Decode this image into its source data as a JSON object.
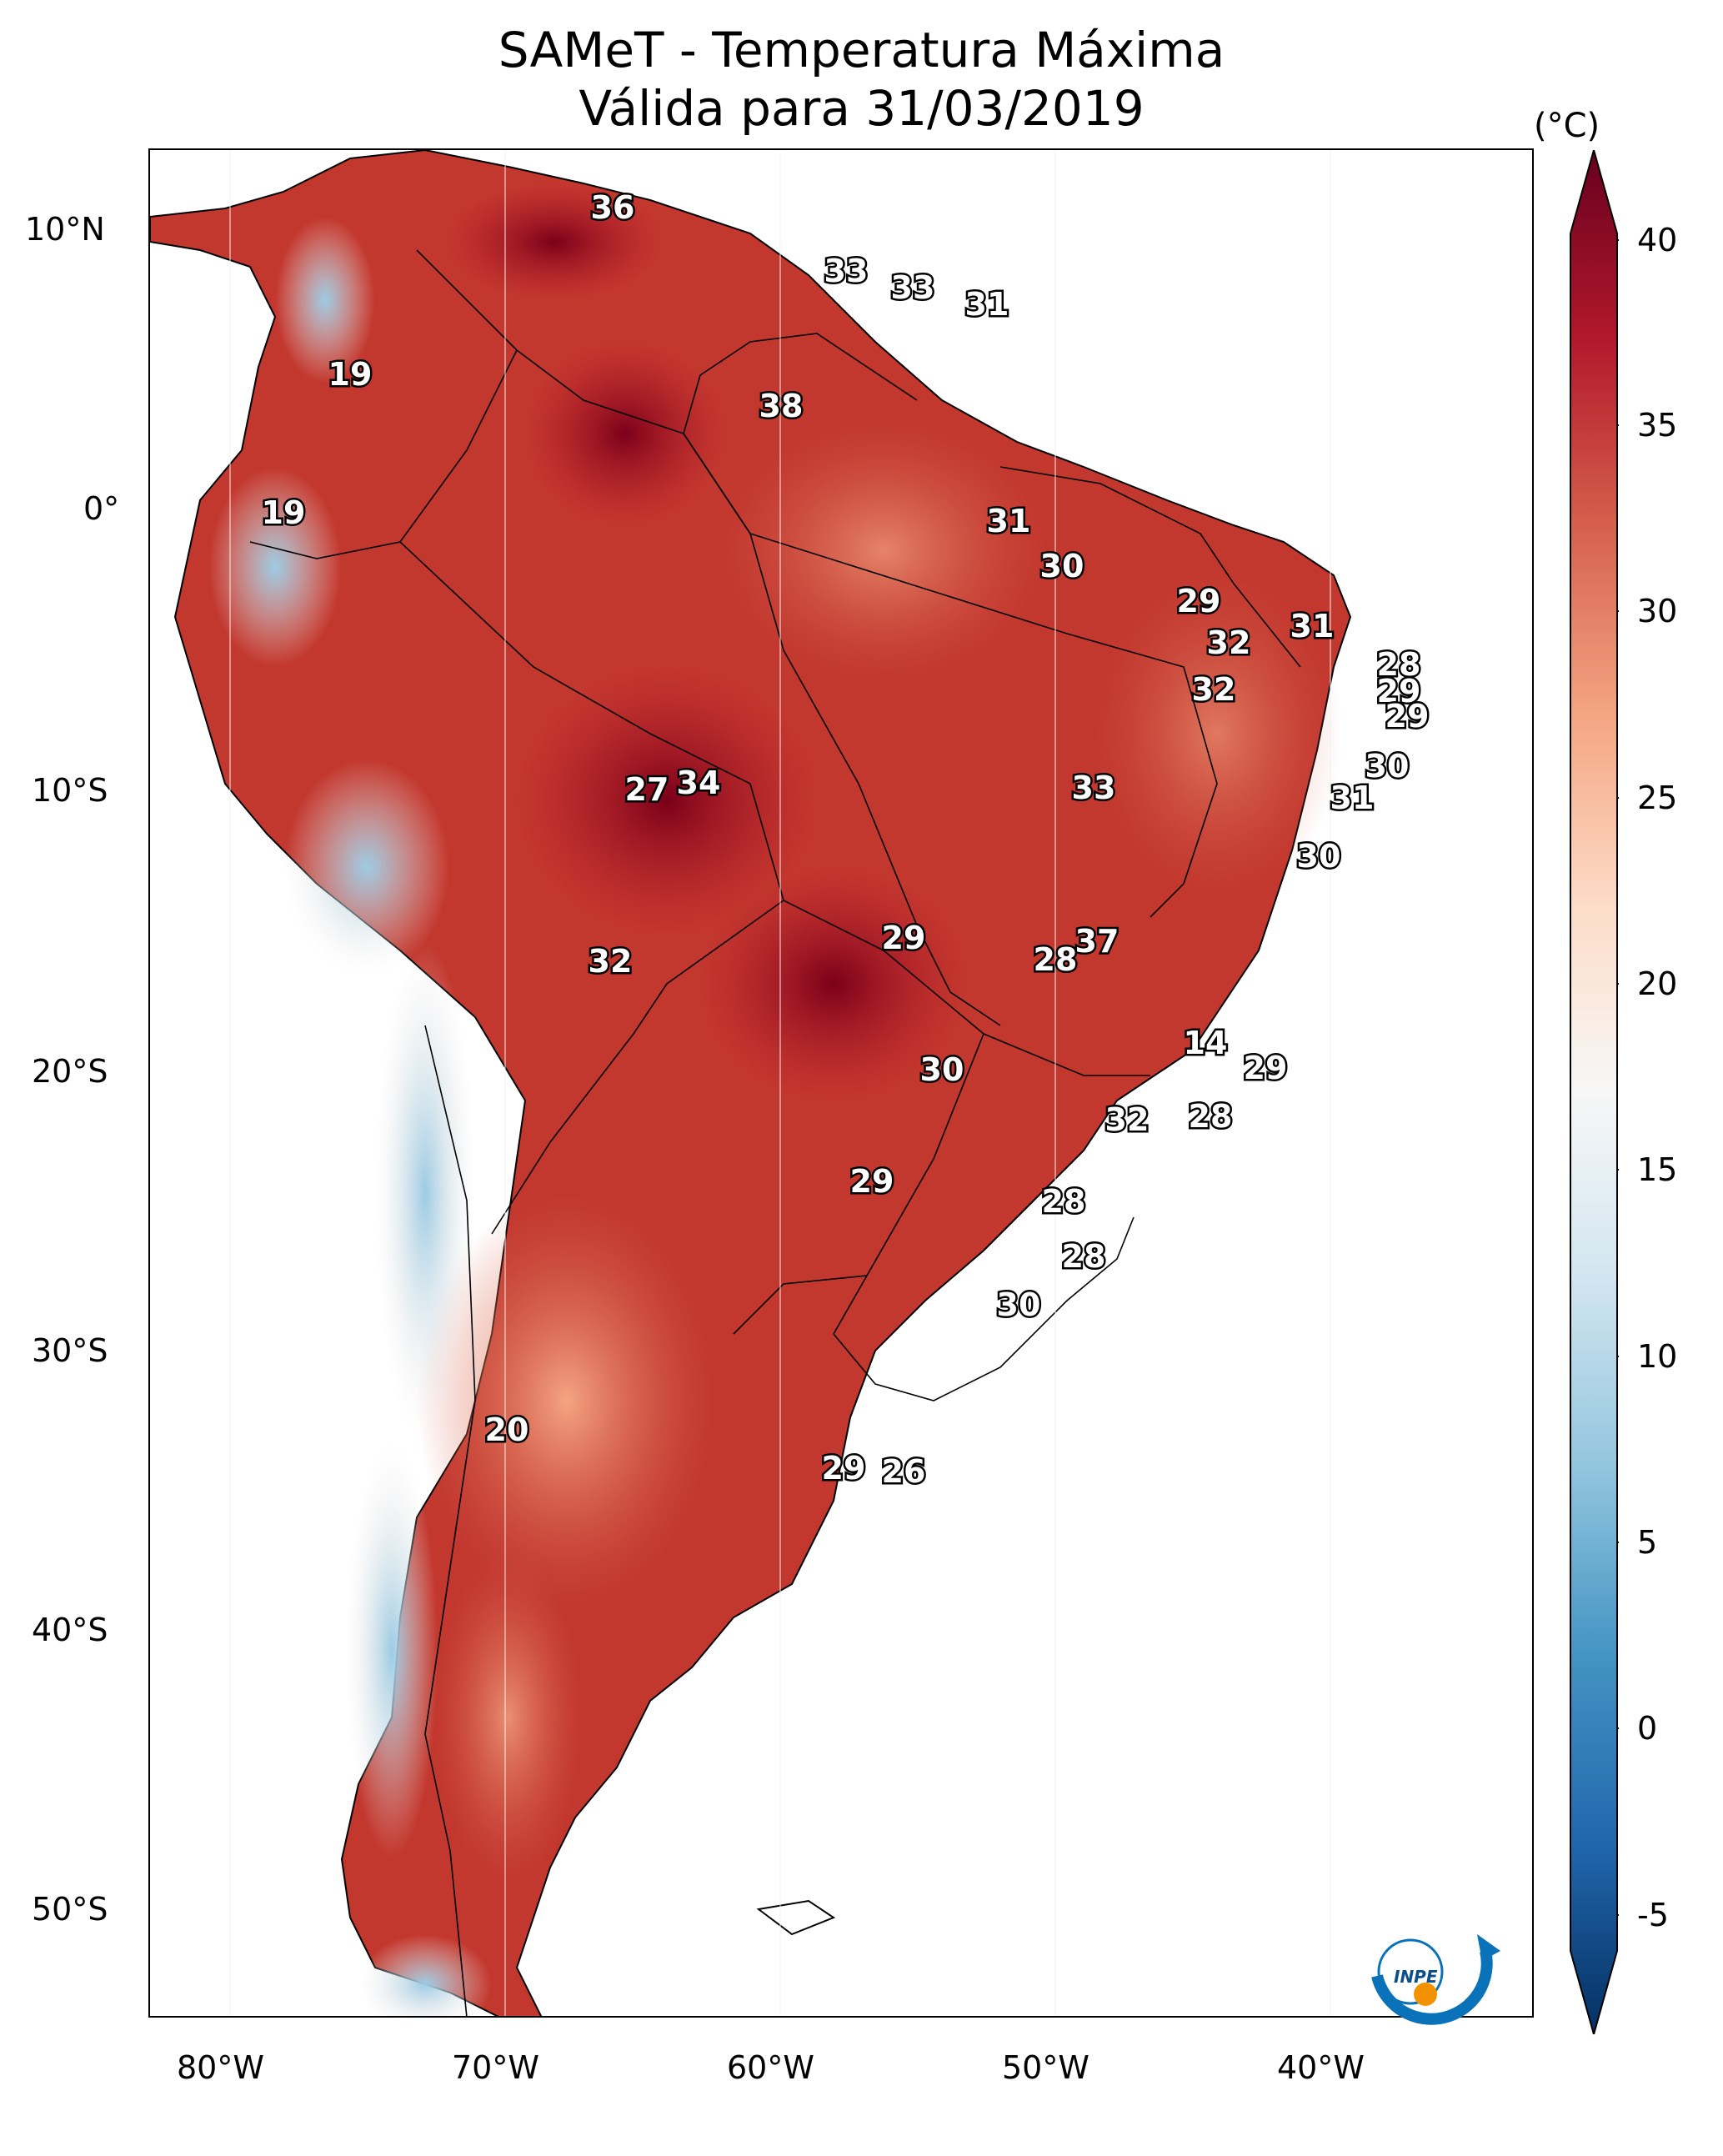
{
  "title": {
    "line1": "SAMeT - Temperatura Máxima",
    "line2": "Válida para 31/03/2019"
  },
  "colorbar": {
    "units": "(°C)",
    "ticks": [
      "40",
      "35",
      "30",
      "25",
      "20",
      "15",
      "10",
      "5",
      "0",
      "-5"
    ],
    "range": [
      -5,
      40
    ],
    "colors_top_to_bottom": [
      "#67001f",
      "#b2182b",
      "#d6604d",
      "#f4a582",
      "#fddbc7",
      "#f7f7f7",
      "#d1e5f0",
      "#92c5de",
      "#4393c3",
      "#2166ac",
      "#053061"
    ]
  },
  "axes": {
    "lat_ticks": [
      "10°N",
      "0°",
      "10°S",
      "20°S",
      "30°S",
      "40°S",
      "50°S"
    ],
    "lon_ticks": [
      "80°W",
      "70°W",
      "60°W",
      "50°W",
      "40°W"
    ]
  },
  "stations": [
    "36",
    "33",
    "33",
    "31",
    "19",
    "38",
    "19",
    "31",
    "30",
    "29",
    "32",
    "31",
    "32",
    "28",
    "29",
    "29",
    "30",
    "34",
    "27",
    "33",
    "31",
    "30",
    "29",
    "37",
    "28",
    "32",
    "14",
    "29",
    "30",
    "32",
    "28",
    "29",
    "28",
    "28",
    "30",
    "20",
    "29",
    "26"
  ],
  "logo": {
    "text": "INPE",
    "accent": "#0a72b8",
    "sun": "#f39200"
  }
}
